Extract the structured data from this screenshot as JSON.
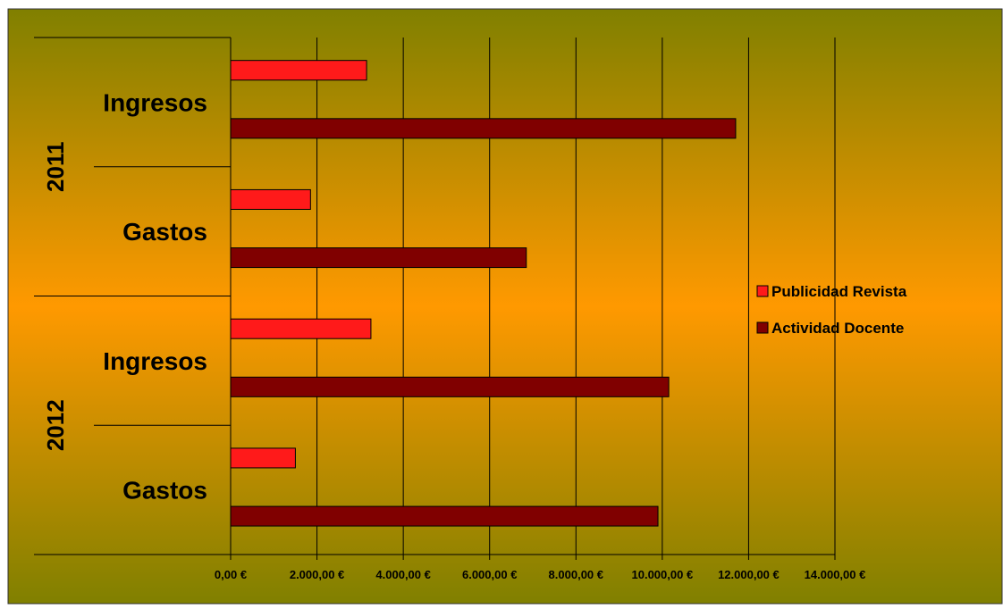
{
  "chart_data": {
    "type": "bar",
    "orientation": "horizontal",
    "groups": [
      {
        "year": "2011",
        "categories": [
          "Ingresos",
          "Gastos"
        ]
      },
      {
        "year": "2012",
        "categories": [
          "Ingresos",
          "Gastos"
        ]
      }
    ],
    "series": [
      {
        "name": "Publicidad Revista",
        "values": [
          3150,
          1850,
          3250,
          1500
        ],
        "color": "#ff1a1a"
      },
      {
        "name": "Actividad Docente",
        "values": [
          11700,
          6850,
          10150,
          9900
        ],
        "color": "#800000"
      }
    ],
    "x_ticks": [
      "0,00 €",
      "2.000,00 €",
      "4.000,00 €",
      "6.000,00 €",
      "8.000,00 €",
      "10.000,00 €",
      "12.000,00 €",
      "14.000,00 €"
    ],
    "xlim": [
      0,
      14000
    ],
    "grid": true,
    "legend_position": "right",
    "colors": {
      "background_top": "#808000",
      "background_mid": "#ff9900",
      "background_bottom": "#808000"
    }
  }
}
